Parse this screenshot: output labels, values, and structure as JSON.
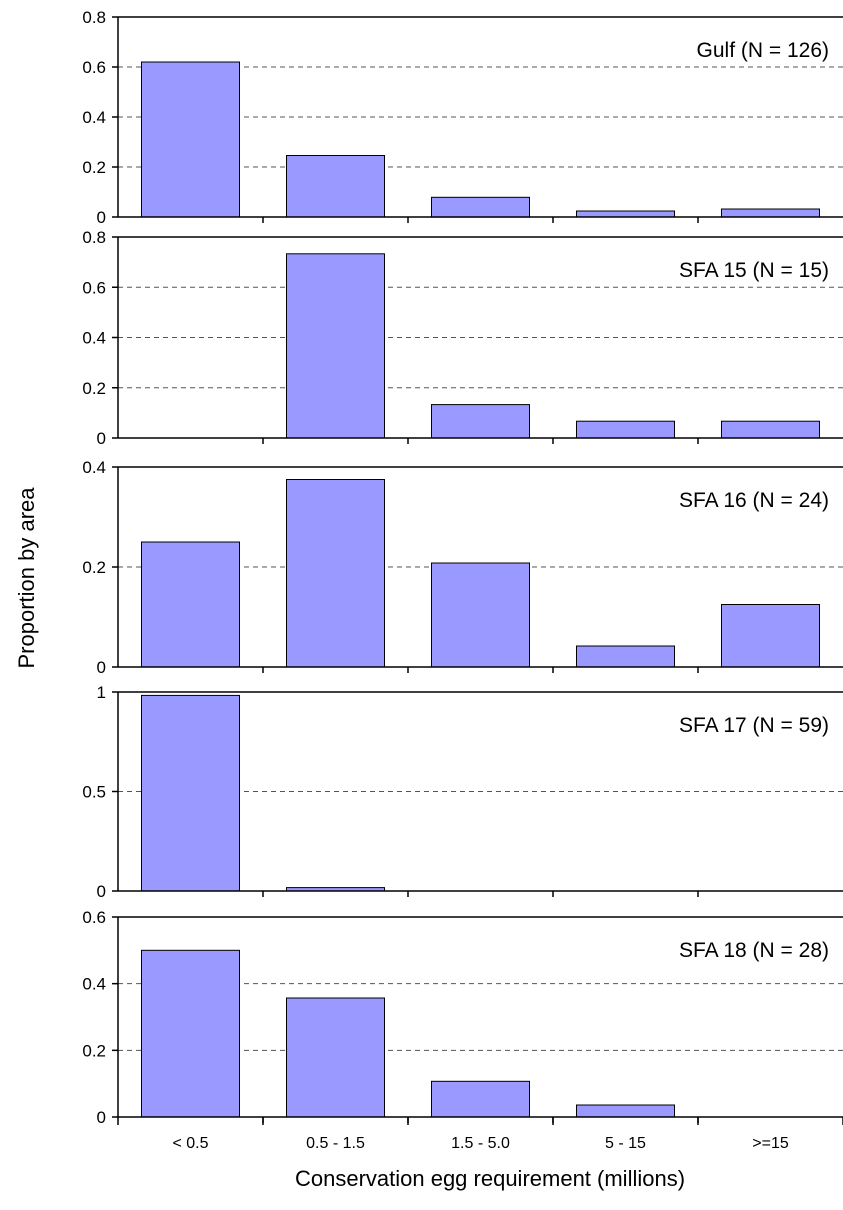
{
  "chart_data": {
    "type": "bar",
    "xlabel": "Conservation egg requirement (millions)",
    "ylabel": "Proportion by area",
    "categories": [
      "< 0.5",
      "0.5 - 1.5",
      "1.5 - 5.0",
      "5 - 15",
      ">=15"
    ],
    "bar_color": "#9999ff",
    "grid": "horizontal dashed",
    "panels": [
      {
        "title": "Gulf (N = 126)",
        "ylim": [
          0,
          0.8
        ],
        "yticks": [
          "0",
          "0.2",
          "0.4",
          "0.6",
          "0.8"
        ],
        "ytick_values": [
          0,
          0.2,
          0.4,
          0.6,
          0.8
        ],
        "values": [
          0.62,
          0.246,
          0.079,
          0.024,
          0.032
        ]
      },
      {
        "title": "SFA 15 (N = 15)",
        "ylim": [
          0,
          0.8
        ],
        "yticks": [
          "0",
          "0.2",
          "0.4",
          "0.6",
          "0.8"
        ],
        "ytick_values": [
          0,
          0.2,
          0.4,
          0.6,
          0.8
        ],
        "values": [
          0,
          0.733,
          0.133,
          0.067,
          0.067
        ]
      },
      {
        "title": "SFA 16 (N = 24)",
        "ylim": [
          0,
          0.4
        ],
        "yticks": [
          "0",
          "0.2",
          "0.4"
        ],
        "ytick_values": [
          0,
          0.2,
          0.4
        ],
        "values": [
          0.25,
          0.375,
          0.208,
          0.042,
          0.125
        ]
      },
      {
        "title": "SFA 17 (N = 59)",
        "ylim": [
          0,
          1
        ],
        "yticks": [
          "0",
          "0.5",
          "1"
        ],
        "ytick_values": [
          0,
          0.5,
          1
        ],
        "values": [
          0.983,
          0.017,
          0,
          0,
          0
        ]
      },
      {
        "title": "SFA 18 (N = 28)",
        "ylim": [
          0,
          0.6
        ],
        "yticks": [
          "0",
          "0.2",
          "0.4",
          "0.6"
        ],
        "ytick_values": [
          0,
          0.2,
          0.4,
          0.6
        ],
        "values": [
          0.5,
          0.357,
          0.107,
          0.036,
          0
        ]
      }
    ]
  }
}
